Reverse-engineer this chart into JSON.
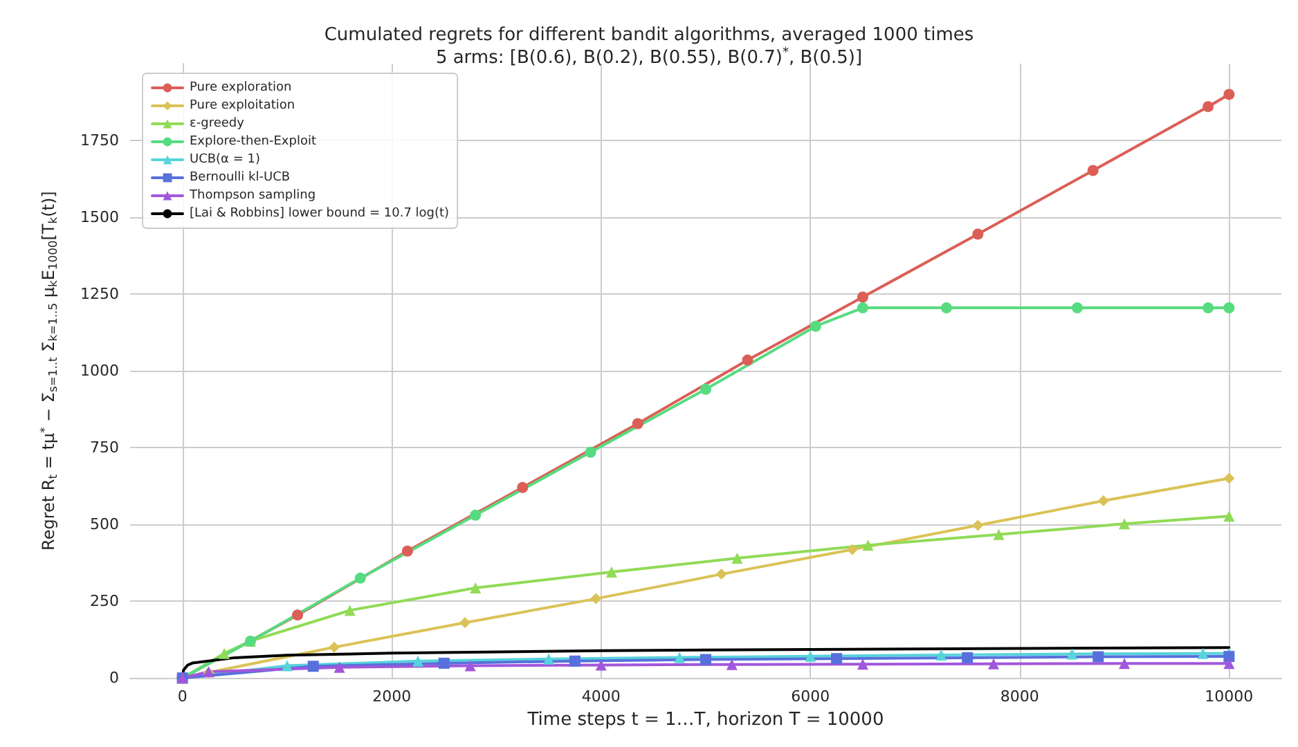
{
  "chart_data": {
    "type": "line",
    "title": "Cumulated regrets for different bandit algorithms, averaged 1000 times",
    "subtitle": "5 arms: [B(0.6), B(0.2), B(0.55), B(0.7)$^{*}$, B(0.5)]",
    "xlabel": "Time steps t = 1…T, horizon T = 10000",
    "ylabel": "Regret R$_{t}$ = tμ$^{*}$ − Σ$_{s=1..t}$ Σ$_{k=1..5}$ μ$_{k}$E$_{1000}$[T$_{k}$(t)]",
    "xlim": [
      -500,
      10500
    ],
    "xticks": [
      0,
      2000,
      4000,
      6000,
      8000,
      10000
    ],
    "ylim": [
      0,
      2000
    ],
    "yticks": [
      0,
      250,
      500,
      750,
      1000,
      1250,
      1500,
      1750
    ],
    "grid": true,
    "legend": "top left",
    "line_style": "solid",
    "series": [
      {
        "name": "Pure exploration",
        "color": "#db5f57",
        "marker": "circle",
        "x": [
          0,
          1100,
          2150,
          3250,
          4350,
          5400,
          6500,
          7600,
          8700,
          9800,
          10000
        ],
        "values": [
          0,
          205,
          413,
          620,
          828,
          1035,
          1240,
          1445,
          1652,
          1860,
          1900
        ]
      },
      {
        "name": "Pure exploitation",
        "color": "#dbc257",
        "marker": "diamond",
        "x": [
          0,
          250,
          1450,
          2700,
          3950,
          5150,
          6400,
          7600,
          8800,
          10000
        ],
        "values": [
          0,
          18,
          100,
          180,
          258,
          338,
          418,
          497,
          577,
          650
        ]
      },
      {
        "name": "ε-greedy",
        "color": "#91db57",
        "marker": "triangle",
        "x": [
          0,
          400,
          650,
          1600,
          2800,
          4100,
          5300,
          6550,
          7800,
          9000,
          10000
        ],
        "values": [
          0,
          80,
          120,
          220,
          293,
          345,
          390,
          432,
          467,
          502,
          527
        ]
      },
      {
        "name": "Explore-then-Exploit",
        "color": "#57db80",
        "marker": "circle",
        "x": [
          0,
          650,
          1700,
          2800,
          3900,
          5000,
          6050,
          6500,
          7300,
          8550,
          9800,
          10000
        ],
        "values": [
          0,
          120,
          325,
          530,
          735,
          940,
          1145,
          1205,
          1205,
          1205,
          1205,
          1205
        ]
      },
      {
        "name": "UCB(α = 1)",
        "color": "#57d3db",
        "marker": "triangle",
        "x": [
          0,
          1000,
          2250,
          3500,
          4750,
          6000,
          7250,
          8500,
          9750,
          10000
        ],
        "values": [
          0,
          40,
          55,
          62,
          67,
          71,
          75,
          78,
          80,
          80
        ]
      },
      {
        "name": "Bernoulli kl-UCB",
        "color": "#5770db",
        "marker": "square",
        "x": [
          0,
          1250,
          2500,
          3750,
          5000,
          6250,
          7500,
          8750,
          10000
        ],
        "values": [
          0,
          38,
          48,
          55,
          60,
          63,
          66,
          69,
          70
        ]
      },
      {
        "name": "Thompson sampling",
        "color": "#a157db",
        "marker": "triangle",
        "x": [
          0,
          250,
          1500,
          2750,
          4000,
          5250,
          6500,
          7750,
          9000,
          10000
        ],
        "values": [
          0,
          20,
          35,
          40,
          42,
          44,
          45,
          46,
          47,
          47
        ]
      },
      {
        "name": "[Lai & Robbins] lower bound = 10.7 log(t)",
        "color": "#000000",
        "marker": "none",
        "x": [
          1,
          10,
          50,
          100,
          500,
          1000,
          2000,
          4000,
          6000,
          8000,
          10000
        ],
        "values": [
          0,
          25,
          42,
          49,
          66,
          74,
          81,
          89,
          93,
          96,
          99
        ]
      }
    ]
  }
}
